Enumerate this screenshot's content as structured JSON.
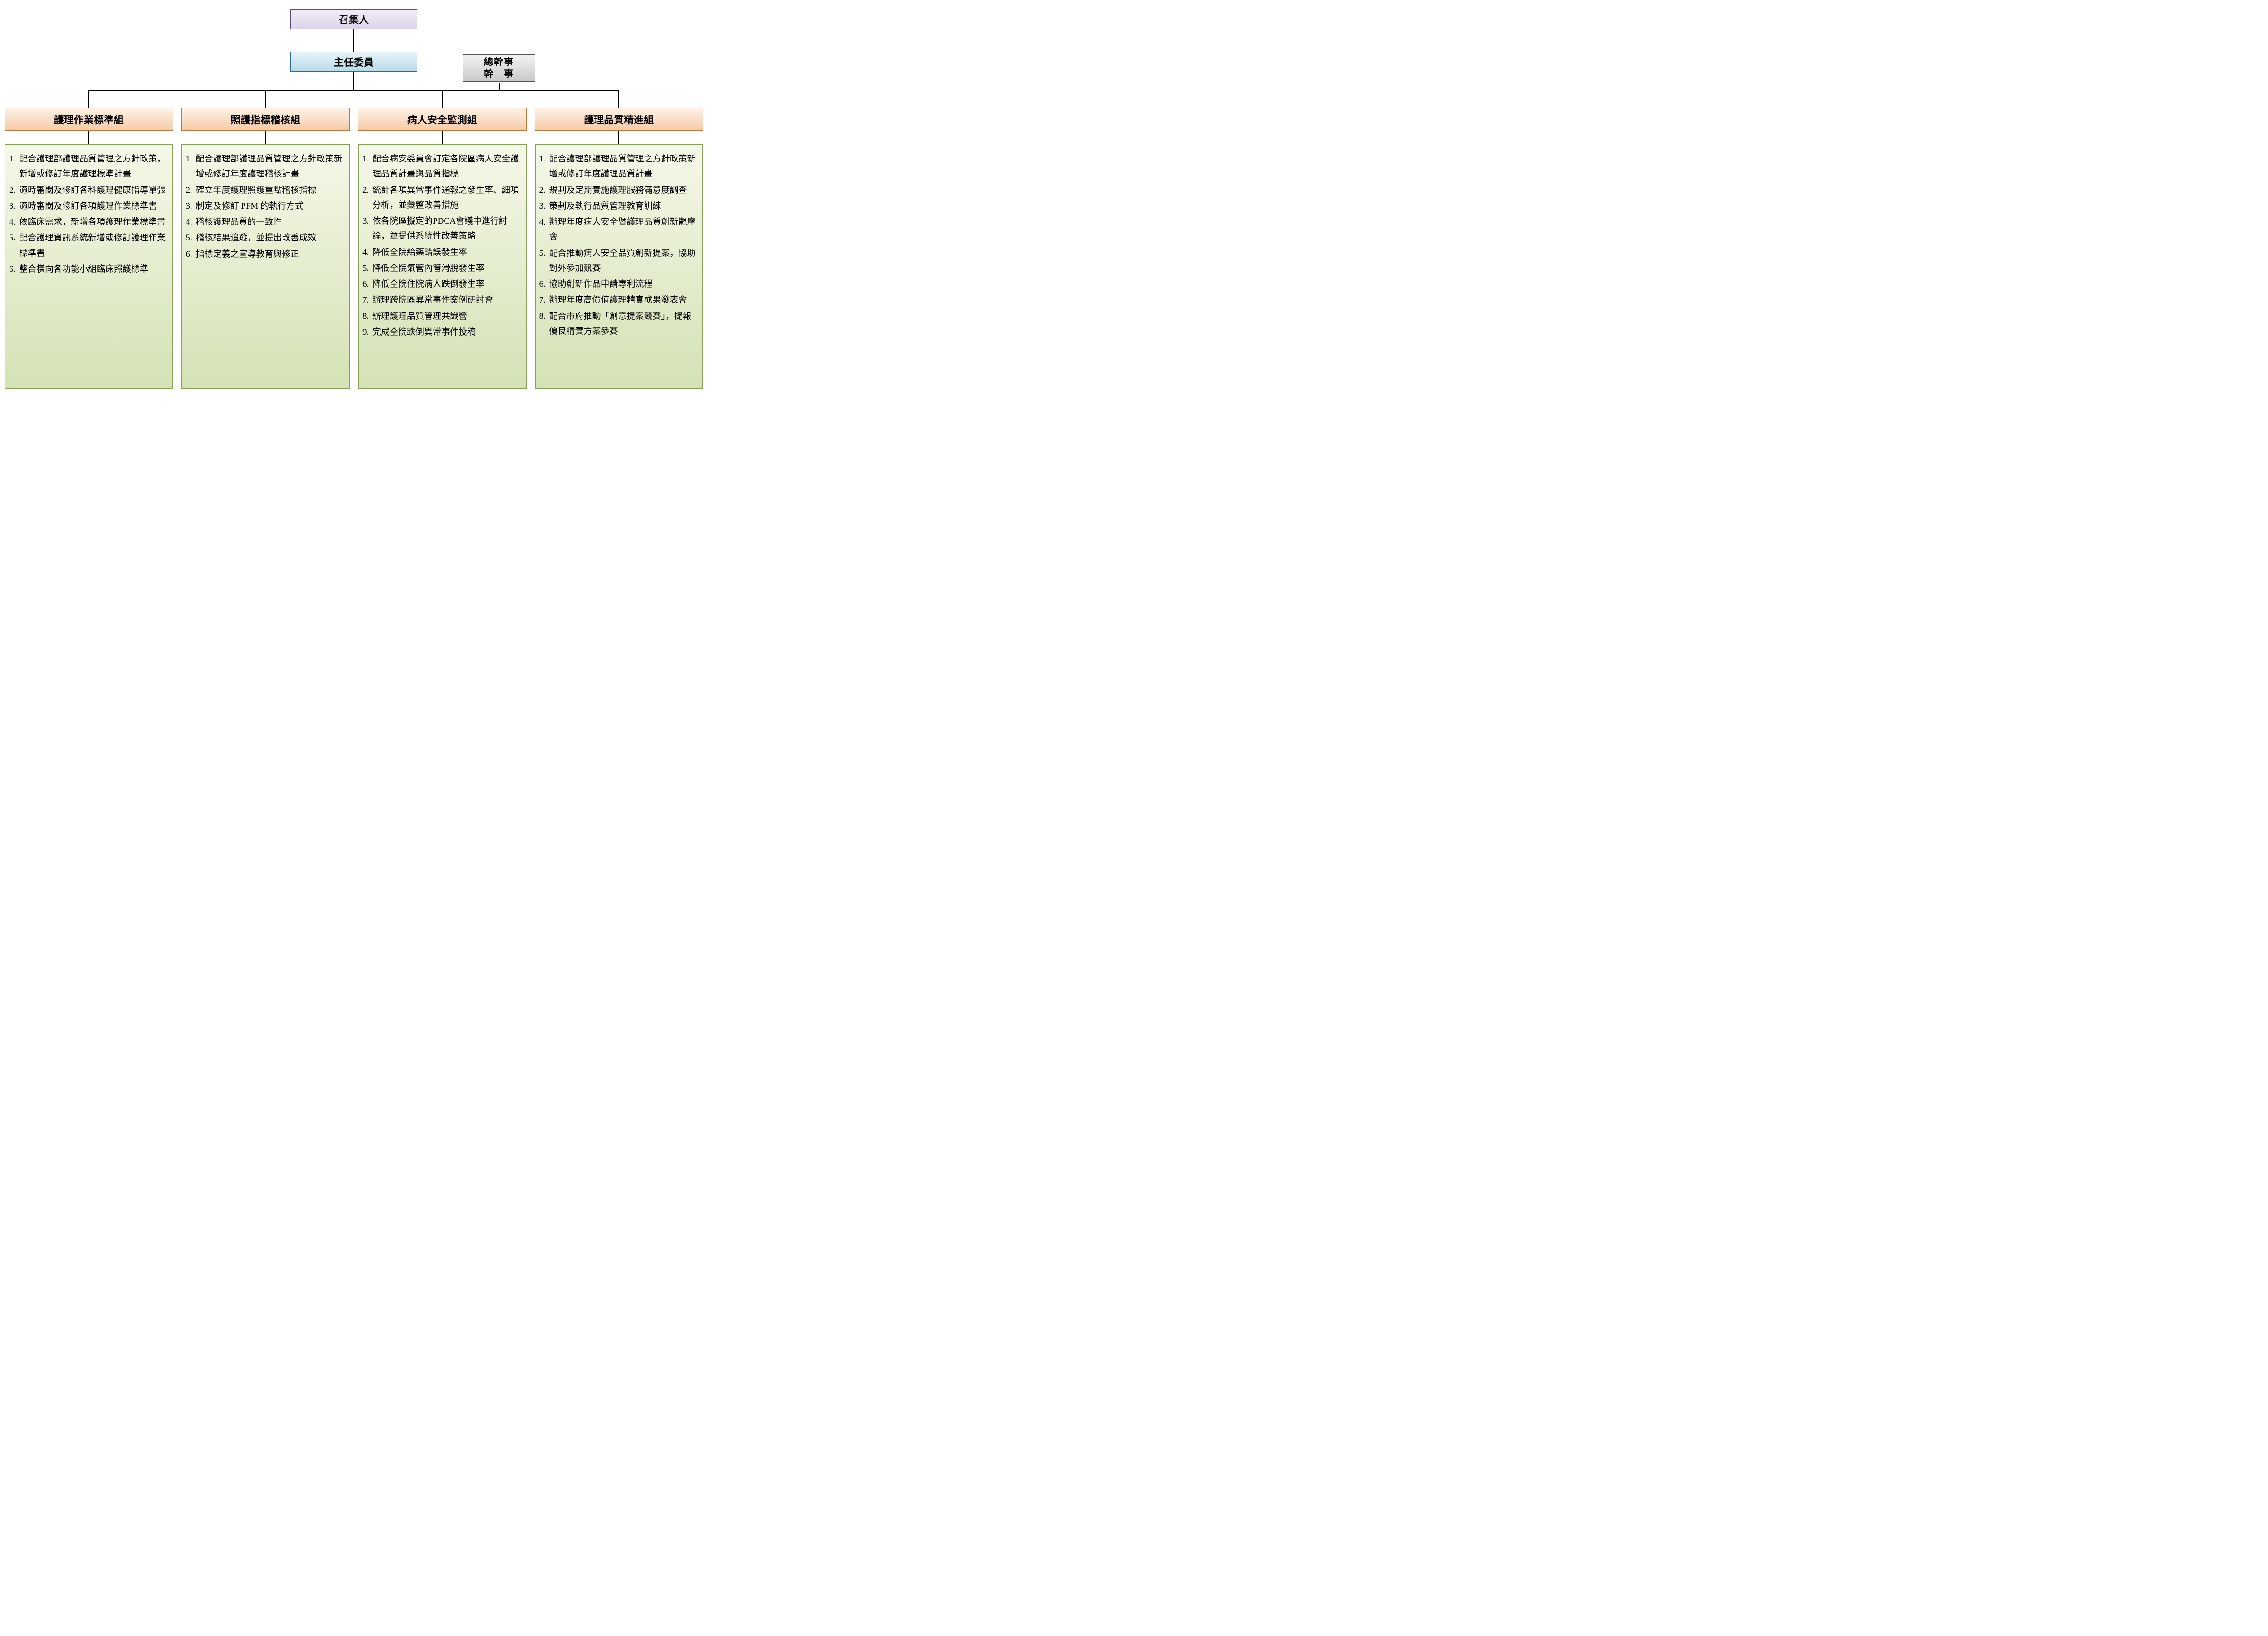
{
  "orgchart": {
    "type": "tree",
    "background_color": "#ffffff",
    "line_color": "#000000",
    "colors": {
      "convener_bg_top": "#f2eef7",
      "convener_bg_bottom": "#dcd3e8",
      "convener_border": "#5b4a7a",
      "chairman_bg_top": "#e7f3f8",
      "chairman_bg_bottom": "#b7dce9",
      "chairman_border": "#2a6f8f",
      "secretary_bg_top": "#f3f3f3",
      "secretary_bg_bottom": "#c9c9c9",
      "secretary_border": "#555555",
      "group_bg_top": "#fef2e6",
      "group_bg_bottom": "#f5cba7",
      "group_border": "#b87a3c",
      "detail_bg_top": "#f4f8e8",
      "detail_bg_bottom": "#d4e2b5",
      "detail_border": "#8aa05a"
    },
    "fonts": {
      "header_size_pt": 16,
      "body_size_pt": 14
    },
    "convener": "召集人",
    "chairman": "主任委員",
    "secretary_line1": "總幹事",
    "secretary_line2": "幹　事",
    "groups": [
      {
        "title": "護理作業標準組",
        "items": [
          "配合護理部護理品質管理之方針政策，新增或修訂年度護理標準計畫",
          "適時審閱及修訂各科護理健康指導單張",
          "適時審閱及修訂各項護理作業標準書",
          "依臨床需求，新增各項護理作業標準書",
          "配合護理資訊系統新增或修訂護理作業標準書",
          "整合橫向各功能小組臨床照護標準"
        ]
      },
      {
        "title": "照護指標稽核組",
        "items": [
          "配合護理部護理品質管理之方針政策新增或修訂年度護理稽核計畫",
          "確立年度護理照護重點稽核指標",
          "制定及修訂 PFM 的執行方式",
          "稽核護理品質的一致性",
          "稽核結果追蹤，並提出改善成效",
          "指標定義之宣導教育與修正"
        ]
      },
      {
        "title": "病人安全監測組",
        "items": [
          "配合病安委員會訂定各院區病人安全護理品質計畫與品質指標",
          "統計各項異常事件通報之發生率、細項分析，並彙整改善措施",
          "依各院區擬定的PDCA會議中進行討論，並提供系統性改善策略",
          "降低全院給藥錯誤發生率",
          "降低全院氣管內管滑脫發生率",
          "降低全院住院病人跌倒發生率",
          "辦理跨院區異常事件案例研討會",
          "辦理護理品質管理共識營",
          "完成全院跌倒異常事件投稿"
        ]
      },
      {
        "title": "護理品質精進組",
        "items": [
          "配合護理部護理品質管理之方針政策新增或修訂年度護理品質計畫",
          "規劃及定期實施護理服務滿意度調查",
          "策劃及執行品質管理教育訓練",
          "辦理年度病人安全暨護理品質創新觀摩會",
          "配合推動病人安全品質創新提案，協助對外參加競賽",
          "協助創新作品申請專利流程",
          "辦理年度高價值護理精實成果發表會",
          "配合市府推動「創意提案競賽」，提報優良精實方案參賽"
        ]
      }
    ]
  }
}
